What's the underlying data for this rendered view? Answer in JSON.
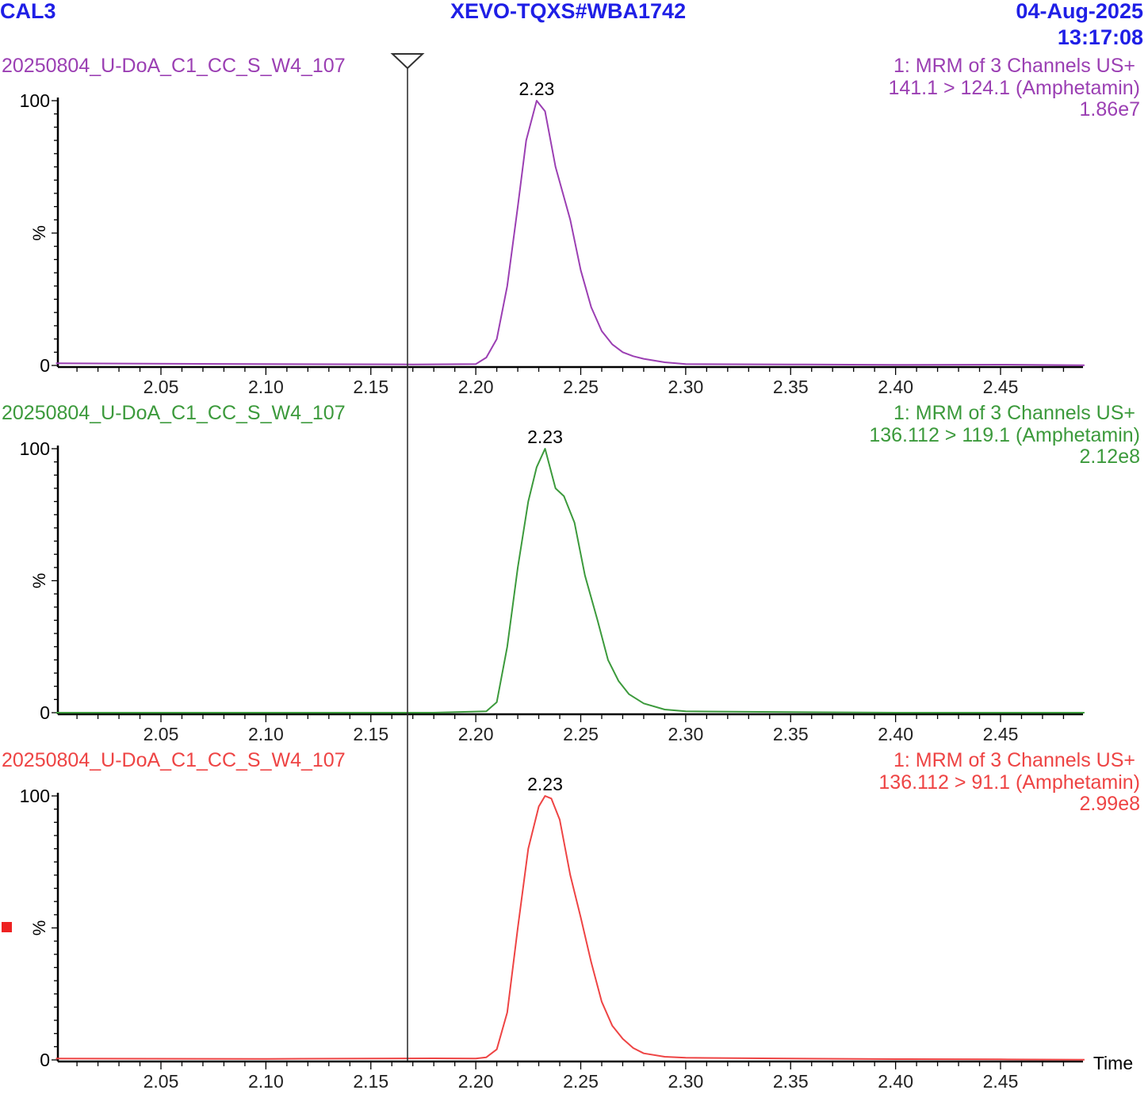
{
  "header": {
    "sample": "CAL3",
    "instrument": "XEVO-TQXS#WBA1742",
    "date": "04-Aug-2025",
    "time": "13:17:08"
  },
  "chart_data": [
    {
      "type": "line",
      "color": "#9b3fb3",
      "sample_name": "20250804_U-DoA_C1_CC_S_W4_107",
      "function": "1: MRM of 3 Channels US+",
      "transition": "141.1 > 124.1 (Amphetamin)",
      "max_intensity": "1.86e7",
      "ylabel": "%",
      "yticks": [
        "0",
        "100"
      ],
      "ylim": [
        0,
        100
      ],
      "xlim": [
        2.0,
        2.49
      ],
      "xticks": [
        "2.05",
        "2.10",
        "2.15",
        "2.20",
        "2.25",
        "2.30",
        "2.35",
        "2.40",
        "2.45"
      ],
      "peak_label": "2.23",
      "peak_x": 2.229,
      "x": [
        2.0,
        2.1,
        2.17,
        2.2,
        2.205,
        2.21,
        2.215,
        2.22,
        2.224,
        2.229,
        2.233,
        2.238,
        2.245,
        2.25,
        2.255,
        2.26,
        2.265,
        2.27,
        2.275,
        2.28,
        2.29,
        2.3,
        2.35,
        2.4,
        2.45,
        2.49
      ],
      "y": [
        0.8,
        0.5,
        0.4,
        0.5,
        3,
        10,
        30,
        60,
        85,
        100,
        96,
        75,
        55,
        36,
        22,
        13,
        8,
        5,
        3.5,
        2.5,
        1.2,
        0.5,
        0.4,
        0.2,
        0.3,
        0.1
      ]
    },
    {
      "type": "line",
      "color": "#3c9a3c",
      "sample_name": "20250804_U-DoA_C1_CC_S_W4_107",
      "function": "1: MRM of 3 Channels US+",
      "transition": "136.112 > 119.1 (Amphetamin)",
      "max_intensity": "2.12e8",
      "ylabel": "%",
      "yticks": [
        "0",
        "100"
      ],
      "ylim": [
        0,
        100
      ],
      "xlim": [
        2.0,
        2.49
      ],
      "xticks": [
        "2.05",
        "2.10",
        "2.15",
        "2.20",
        "2.25",
        "2.30",
        "2.35",
        "2.40",
        "2.45"
      ],
      "peak_label": "2.23",
      "peak_x": 2.233,
      "x": [
        2.0,
        2.1,
        2.18,
        2.205,
        2.21,
        2.215,
        2.22,
        2.225,
        2.229,
        2.233,
        2.238,
        2.242,
        2.247,
        2.252,
        2.258,
        2.263,
        2.268,
        2.273,
        2.28,
        2.29,
        2.3,
        2.35,
        2.4,
        2.49
      ],
      "y": [
        0,
        0,
        0,
        0.5,
        4,
        25,
        55,
        80,
        93,
        100,
        85,
        82,
        72,
        52,
        35,
        20,
        12,
        7,
        3.5,
        1.2,
        0.5,
        0.2,
        0,
        0
      ]
    },
    {
      "type": "line",
      "color": "#ee4444",
      "sample_name": "20250804_U-DoA_C1_CC_S_W4_107",
      "function": "1: MRM of 3 Channels US+",
      "transition": "136.112 > 91.1 (Amphetamin)",
      "max_intensity": "2.99e8",
      "ylabel": "%",
      "yticks": [
        "0",
        "100"
      ],
      "ylim": [
        0,
        100
      ],
      "xlim": [
        2.0,
        2.49
      ],
      "xticks": [
        "2.05",
        "2.10",
        "2.15",
        "2.20",
        "2.25",
        "2.30",
        "2.35",
        "2.40",
        "2.45"
      ],
      "xlabel": "Time",
      "peak_label": "2.23",
      "peak_x": 2.233,
      "x": [
        2.0,
        2.1,
        2.18,
        2.2,
        2.205,
        2.21,
        2.215,
        2.22,
        2.225,
        2.23,
        2.233,
        2.236,
        2.24,
        2.245,
        2.25,
        2.255,
        2.26,
        2.265,
        2.27,
        2.275,
        2.28,
        2.29,
        2.3,
        2.35,
        2.4,
        2.45,
        2.49
      ],
      "y": [
        0.5,
        0.4,
        0.6,
        0.5,
        1,
        4,
        18,
        50,
        80,
        96,
        100,
        99,
        91,
        70,
        54,
        37,
        22,
        13,
        8,
        4.5,
        2.5,
        1.2,
        0.8,
        0.5,
        0.3,
        0.2,
        0.1
      ]
    }
  ]
}
